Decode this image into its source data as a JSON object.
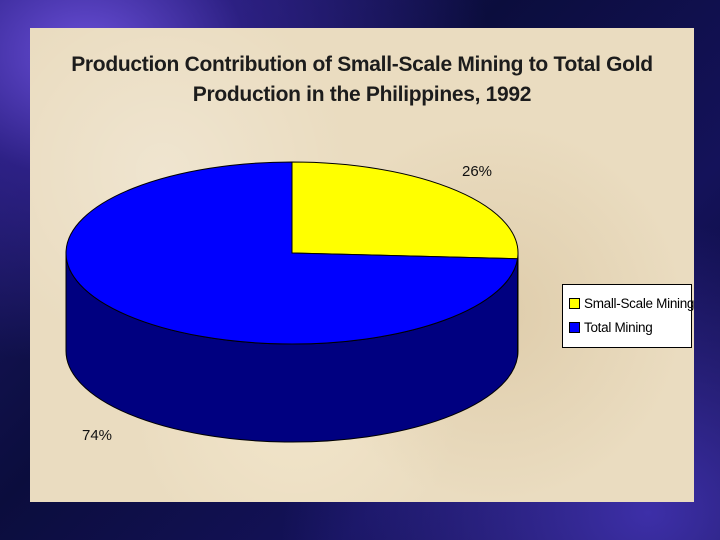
{
  "chart_data": {
    "type": "pie",
    "title_lines": [
      "Production Contribution of Small-Scale Mining to Total Gold",
      "Production in the Philippines, 1992"
    ],
    "slices": [
      {
        "label": "Small-Scale Mining",
        "value": 26,
        "value_label": "26%",
        "color": "#ffff00"
      },
      {
        "label": "Total Mining",
        "value": 74,
        "value_label": "74%",
        "color": "#0000ff"
      }
    ],
    "legend": {
      "placement": "right"
    },
    "style": "3d"
  }
}
